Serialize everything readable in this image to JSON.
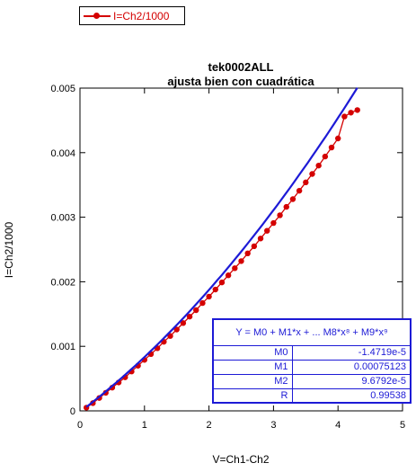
{
  "legend": {
    "label": "I=Ch2/1000",
    "color": "#d40000"
  },
  "chart_data": {
    "type": "scatter",
    "title": "tek0002ALL",
    "subtitle": "ajusta bien con cuadrática",
    "xlabel": "V=Ch1-Ch2",
    "ylabel": "I=Ch2/1000",
    "xlim": [
      0,
      5
    ],
    "ylim": [
      0,
      0.005
    ],
    "x_ticks": [
      "0",
      "1",
      "2",
      "3",
      "4",
      "5"
    ],
    "y_ticks": [
      "0",
      "0.001",
      "0.002",
      "0.003",
      "0.004",
      "0.005"
    ],
    "grid": false,
    "legend_position": "top-left",
    "series": [
      {
        "name": "I=Ch2/1000",
        "color": "#d40000",
        "marker": "circle-line",
        "x": [
          0.1,
          0.2,
          0.3,
          0.4,
          0.5,
          0.6,
          0.7,
          0.8,
          0.9,
          1.0,
          1.1,
          1.2,
          1.3,
          1.4,
          1.5,
          1.6,
          1.7,
          1.8,
          1.9,
          2.0,
          2.1,
          2.2,
          2.3,
          2.4,
          2.5,
          2.6,
          2.7,
          2.8,
          2.9,
          3.0,
          3.1,
          3.2,
          3.3,
          3.4,
          3.5,
          3.6,
          3.7,
          3.8,
          3.9,
          4.0,
          4.1,
          4.2,
          4.3
        ],
        "y": [
          5e-05,
          0.00012,
          0.0002,
          0.00028,
          0.00036,
          0.00044,
          0.00052,
          0.00061,
          0.0007,
          0.00079,
          0.00088,
          0.00097,
          0.00107,
          0.00116,
          0.00126,
          0.00136,
          0.00146,
          0.00156,
          0.00167,
          0.00177,
          0.00188,
          0.00199,
          0.0021,
          0.00221,
          0.00232,
          0.00244,
          0.00255,
          0.00267,
          0.00279,
          0.00291,
          0.00303,
          0.00316,
          0.00328,
          0.00341,
          0.00354,
          0.00367,
          0.0038,
          0.00394,
          0.00408,
          0.00422,
          0.00456,
          0.00462,
          0.00466
        ]
      }
    ],
    "fit": {
      "color": "#1d1ad6",
      "equation": "Y = M0 + M1*x + ... M8*x⁸ + M9*x⁹",
      "coefficients": {
        "M0": -1.4719e-05,
        "M1": 0.00075123,
        "M2": 9.6792e-05
      },
      "x_range": [
        0.1,
        4.3
      ],
      "params": [
        {
          "name": "M0",
          "value": "-1.4719e-5"
        },
        {
          "name": "M1",
          "value": "0.00075123"
        },
        {
          "name": "M2",
          "value": "9.6792e-5"
        },
        {
          "name": "R",
          "value": "0.99538"
        }
      ]
    }
  }
}
